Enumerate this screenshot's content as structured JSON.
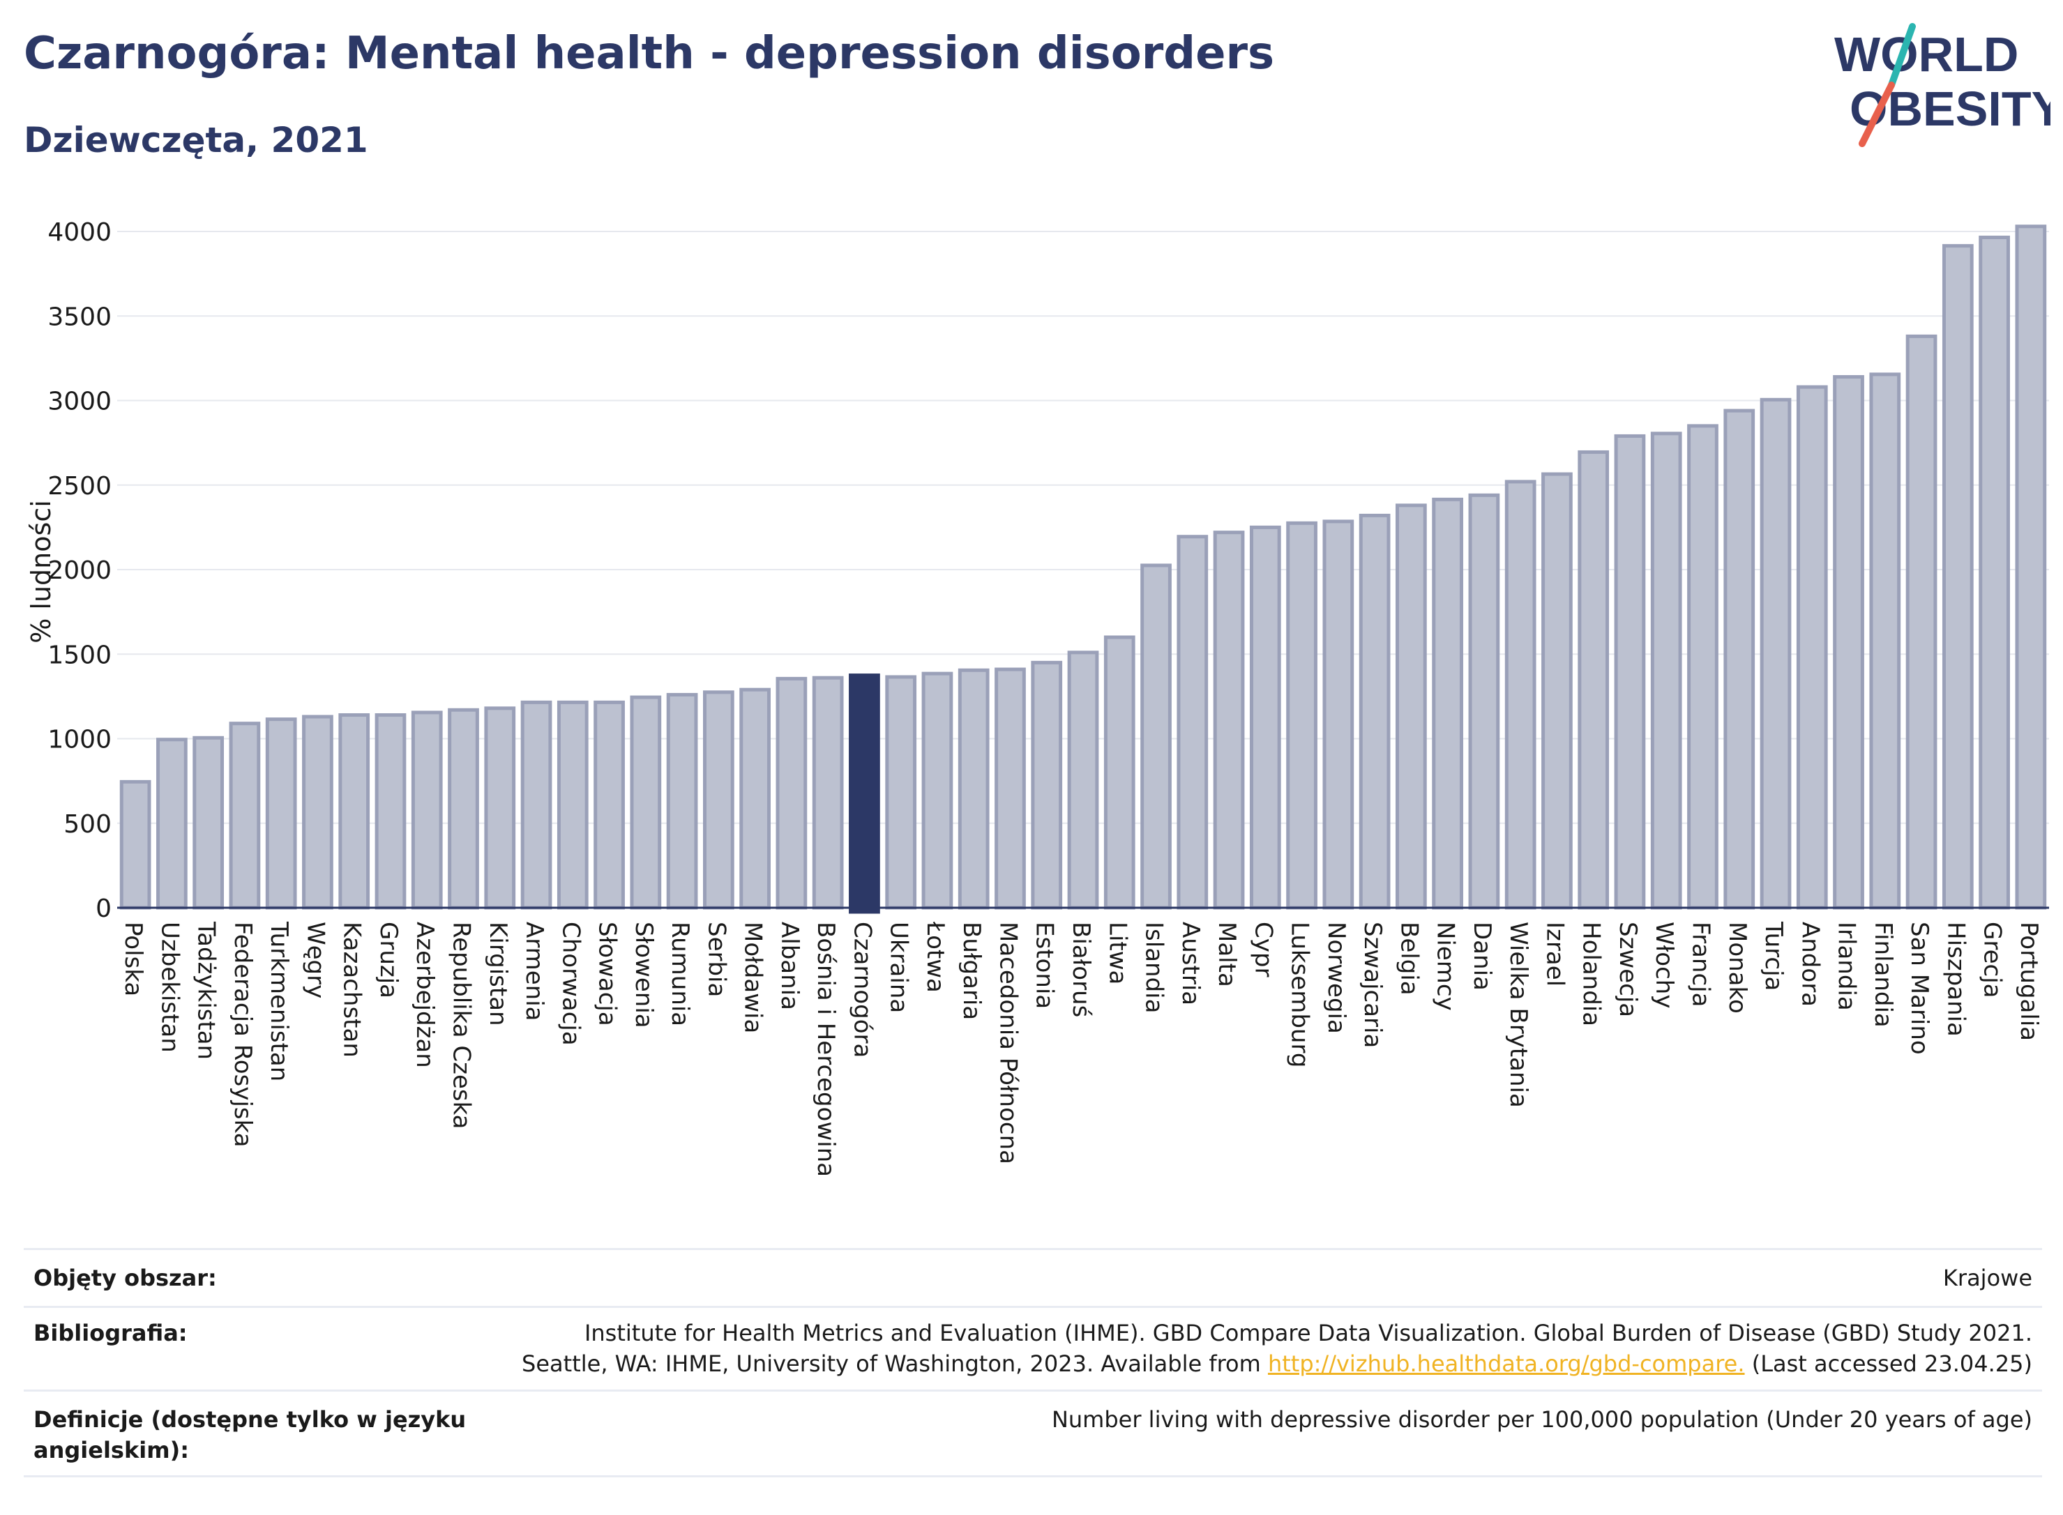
{
  "header": {
    "title": "Czarnogóra: Mental health - depression disorders",
    "subtitle": "Dziewczęta, 2021"
  },
  "logo": {
    "line1": "WORLD",
    "line2": "OBESITY",
    "colors": {
      "text": "#2c3866",
      "accent_teal": "#2bb5b0",
      "accent_red": "#e8604c"
    }
  },
  "colors": {
    "bar_fill": "#bcc1d0",
    "bar_stroke": "#9aa0b8",
    "highlight_fill": "#2c3866",
    "axis_text": "#1a1a1a",
    "grid": "#e6e8ee"
  },
  "chart_data": {
    "type": "bar",
    "ylabel": "% ludności",
    "ylim": [
      0,
      4000
    ],
    "yticks": [
      0,
      500,
      1000,
      1500,
      2000,
      2500,
      3000,
      3500,
      4000
    ],
    "grid": true,
    "highlight": "Czarnogóra",
    "categories": [
      "Polska",
      "Uzbekistan",
      "Tadżykistan",
      "Federacja Rosyjska",
      "Turkmenistan",
      "Węgry",
      "Kazachstan",
      "Gruzja",
      "Azerbejdżan",
      "Republika Czeska",
      "Kirgistan",
      "Armenia",
      "Chorwacja",
      "Słowacja",
      "Słowenia",
      "Rumunia",
      "Serbia",
      "Mołdawia",
      "Albania",
      "Bośnia i Hercegowina",
      "Czarnogóra",
      "Ukraina",
      "Łotwa",
      "Bułgaria",
      "Macedonia Północna",
      "Estonia",
      "Białoruś",
      "Litwa",
      "Islandia",
      "Austria",
      "Malta",
      "Cypr",
      "Luksemburg",
      "Norwegia",
      "Szwajcaria",
      "Belgia",
      "Niemcy",
      "Dania",
      "Wielka Brytania",
      "Izrael",
      "Holandia",
      "Szwecja",
      "Włochy",
      "Francja",
      "Monako",
      "Turcja",
      "Andora",
      "Irlandia",
      "Finlandia",
      "San Marino",
      "Hiszpania",
      "Grecja",
      "Portugalia"
    ],
    "values": [
      745,
      995,
      1005,
      1090,
      1115,
      1130,
      1140,
      1140,
      1155,
      1170,
      1180,
      1215,
      1215,
      1215,
      1245,
      1260,
      1275,
      1290,
      1355,
      1360,
      1375,
      1365,
      1385,
      1405,
      1410,
      1450,
      1510,
      1600,
      2025,
      2195,
      2220,
      2250,
      2275,
      2285,
      2320,
      2380,
      2415,
      2440,
      2520,
      2565,
      2695,
      2790,
      2805,
      2850,
      2940,
      3005,
      3080,
      3140,
      3155,
      3380,
      3915,
      3965,
      4030
    ]
  },
  "footer": {
    "area_label": "Objęty obszar:",
    "area_value": "Krajowe",
    "biblio_label": "Bibliografia:",
    "biblio_line1": "Institute for Health Metrics and Evaluation (IHME). GBD Compare Data Visualization. Global Burden of Disease (GBD) Study 2021.",
    "biblio_line2_pre": "Seattle, WA: IHME, University of Washington, 2023. Available from ",
    "biblio_link": "http://vizhub.healthdata.org/gbd-compare.",
    "biblio_line2_post": " (Last accessed 23.04.25)",
    "def_label": "Definicje (dostępne tylko w języku angielskim):",
    "def_value": "Number living with depressive disorder per 100,000 population (Under 20 years of age)"
  }
}
